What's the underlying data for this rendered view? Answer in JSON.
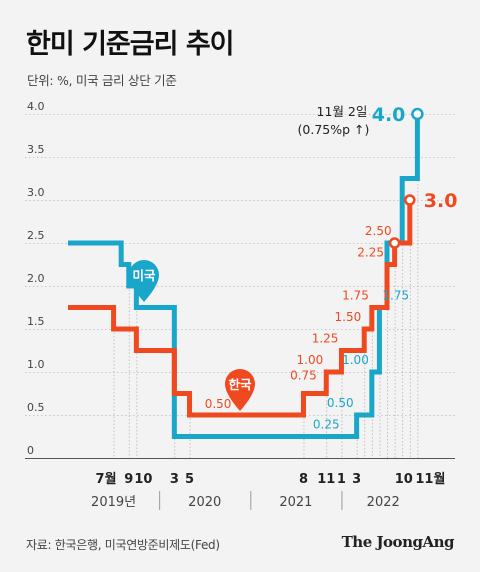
{
  "title": "한미 기준금리 추이",
  "subtitle": "단위: %, 미국 금리 상단 기준",
  "source": "자료: 한국은행, 미국연방준비제도(Fed)",
  "brand": "The JoongAng",
  "colors": {
    "us": "#1aa6c8",
    "kr": "#f1491f",
    "text": "#333333",
    "axis": "#555555"
  },
  "chart_data": {
    "type": "line",
    "title": "한미 기준금리 추이",
    "ylabel": "단위: %, 미국 금리 상단 기준",
    "ylim": [
      0,
      4.0
    ],
    "y_ticks": [
      "0",
      "0.5",
      "1.0",
      "1.5",
      "2.0",
      "2.5",
      "3.0",
      "3.5",
      "4.0"
    ],
    "x_range": [
      "2019-01",
      "2022-12"
    ],
    "year_labels": [
      "2019년",
      "2020",
      "2021",
      "2022"
    ],
    "month_labels": [
      "7월",
      "9",
      "10",
      "3",
      "5",
      "8",
      "11",
      "1",
      "3",
      "10",
      "11월"
    ],
    "series": [
      {
        "name": "미국",
        "points": [
          [
            "2019-01",
            2.5
          ],
          [
            "2019-08",
            2.25
          ],
          [
            "2019-09",
            2.0
          ],
          [
            "2019-10",
            1.75
          ],
          [
            "2020-03",
            0.25
          ],
          [
            "2022-03",
            0.5
          ],
          [
            "2022-05",
            1.0
          ],
          [
            "2022-06",
            1.75
          ],
          [
            "2022-07",
            2.5
          ],
          [
            "2022-09",
            3.25
          ],
          [
            "2022-11",
            4.0
          ]
        ],
        "value_labels": [
          "0.25",
          "0.50",
          "1.00",
          "1.75"
        ],
        "end_label": "4.0"
      },
      {
        "name": "한국",
        "points": [
          [
            "2019-01",
            1.75
          ],
          [
            "2019-07",
            1.5
          ],
          [
            "2019-10",
            1.25
          ],
          [
            "2020-03",
            0.75
          ],
          [
            "2020-05",
            0.5
          ],
          [
            "2021-08",
            0.75
          ],
          [
            "2021-11",
            1.0
          ],
          [
            "2022-01",
            1.25
          ],
          [
            "2022-04",
            1.5
          ],
          [
            "2022-05",
            1.75
          ],
          [
            "2022-07",
            2.25
          ],
          [
            "2022-08",
            2.5
          ],
          [
            "2022-10",
            3.0
          ]
        ],
        "value_labels": [
          "0.50",
          "0.75",
          "1.00",
          "1.25",
          "1.50",
          "1.75",
          "2.25",
          "2.50"
        ],
        "end_label": "3.0"
      }
    ],
    "annotations": [
      {
        "text": "11월 2일",
        "sub": "(0.75%p ↑)"
      }
    ]
  }
}
